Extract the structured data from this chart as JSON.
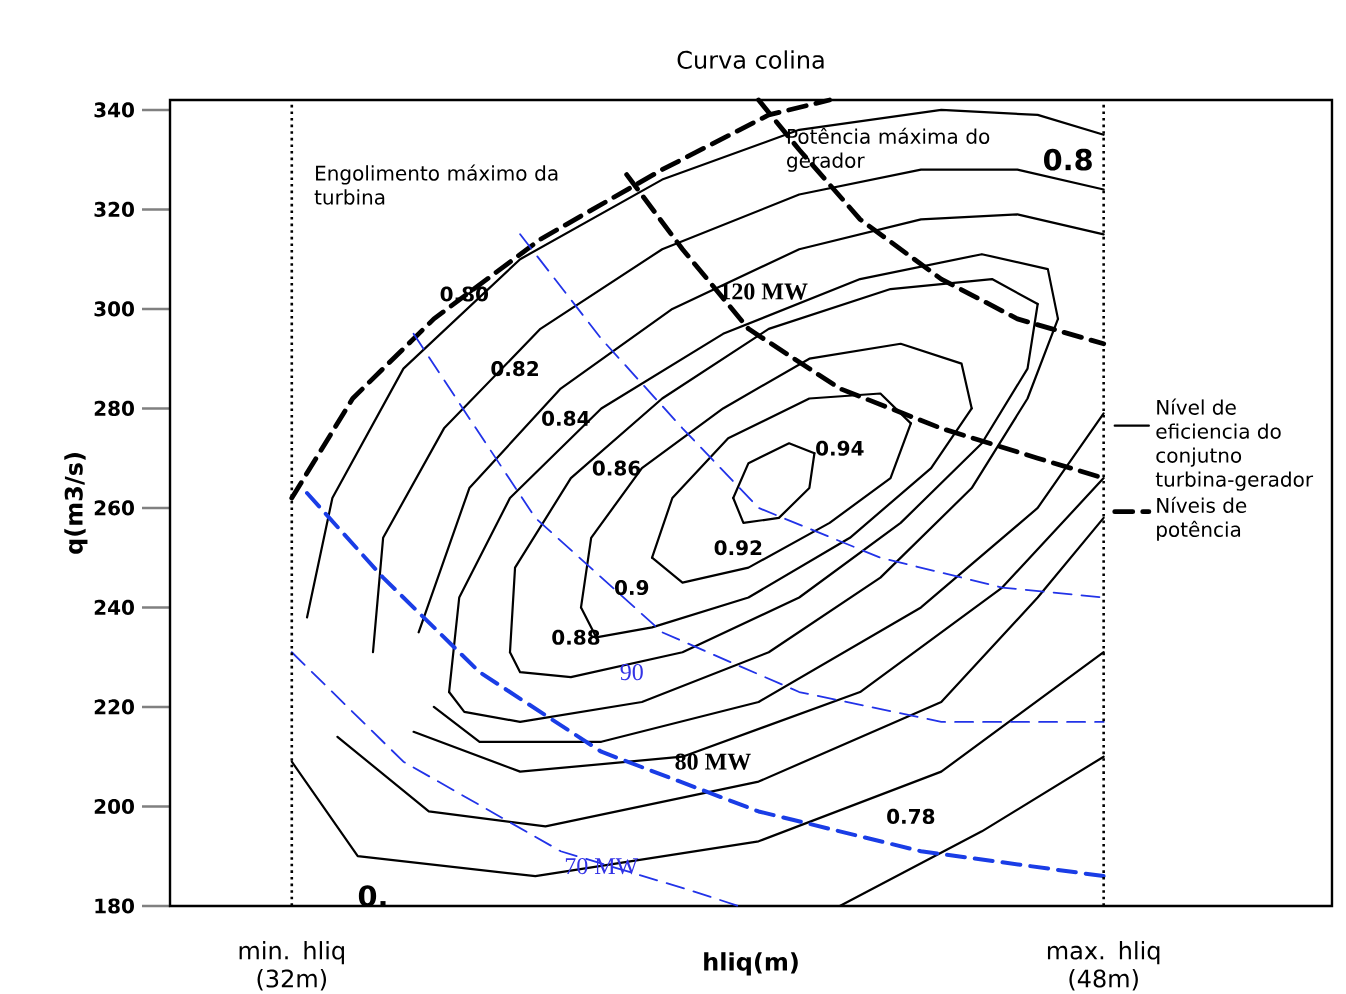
{
  "chart_data": {
    "type": "line",
    "title": "Curva colina",
    "xlabel": "hliq(m)",
    "ylabel": "q(m3/s)",
    "xlim": [
      29.6,
      52.5
    ],
    "ylim": [
      180,
      342
    ],
    "xticks": [
      {
        "value": 32,
        "label": "min. hliq (32m)"
      },
      {
        "value": 48,
        "label": "max. hliq (48m)"
      }
    ],
    "yticks": [
      180,
      200,
      220,
      240,
      260,
      280,
      300,
      320,
      340
    ],
    "grid": false,
    "legend": "right",
    "marker": "none",
    "ref_lines": [
      {
        "axis": "x",
        "value": 32,
        "line_style": "dotted"
      },
      {
        "axis": "x",
        "value": 48,
        "line_style": "dotted"
      }
    ],
    "series": [
      {
        "name": "Nível de eficiencia do conjutno turbina-gerador",
        "color": "#000000",
        "line_style": "solid",
        "x": [
          40.7,
          41.0,
          41.8,
          42.3
        ],
        "values": [
          262,
          269,
          273,
          271
        ]
      },
      {
        "color": "#000000",
        "line_style": "solid",
        "x": [
          40.7,
          40.9,
          41.6,
          42.2,
          42.3
        ],
        "values": [
          262,
          257,
          258,
          264,
          271
        ]
      },
      {
        "color": "#000000",
        "line_style": "solid",
        "x": [
          39.1,
          39.5,
          40.6,
          42.2,
          43.6,
          44.2
        ],
        "values": [
          250,
          262,
          274,
          282,
          283,
          277
        ]
      },
      {
        "color": "#000000",
        "line_style": "solid",
        "x": [
          39.1,
          39.7,
          41.0,
          42.6,
          43.8,
          44.2
        ],
        "values": [
          250,
          245,
          248,
          257,
          266,
          277
        ]
      },
      {
        "color": "#000000",
        "line_style": "solid",
        "x": [
          37.7,
          37.9,
          38.9,
          40.5,
          42.2,
          44.0,
          45.2,
          45.4
        ],
        "values": [
          240,
          254,
          268,
          280,
          290,
          293,
          289,
          280
        ]
      },
      {
        "color": "#000000",
        "line_style": "solid",
        "x": [
          37.7,
          38.0,
          39.1,
          41.0,
          43.0,
          44.6,
          45.4
        ],
        "values": [
          240,
          234,
          236,
          242,
          254,
          268,
          280
        ]
      },
      {
        "color": "#000000",
        "line_style": "solid",
        "x": [
          36.3,
          36.4,
          37.5,
          39.3,
          41.4,
          43.8,
          45.8,
          46.7
        ],
        "values": [
          231,
          248,
          266,
          282,
          296,
          304,
          306,
          301
        ]
      },
      {
        "color": "#000000",
        "line_style": "solid",
        "x": [
          36.3,
          36.5,
          37.5,
          39.7,
          42.0,
          44.0,
          45.6,
          46.5,
          46.7
        ],
        "values": [
          231,
          227,
          226,
          231,
          242,
          257,
          273,
          288,
          301
        ]
      },
      {
        "color": "#000000",
        "line_style": "solid",
        "x": [
          35.1,
          35.3,
          36.3,
          38.1,
          40.5,
          43.2,
          45.6,
          46.9,
          47.1
        ],
        "values": [
          223,
          242,
          262,
          280,
          295,
          306,
          311,
          308,
          298
        ]
      },
      {
        "color": "#000000",
        "line_style": "solid",
        "x": [
          35.1,
          35.4,
          36.5,
          38.9,
          41.4,
          43.6,
          45.4,
          46.5,
          47.1
        ],
        "values": [
          223,
          219,
          217,
          221,
          231,
          246,
          264,
          282,
          298
        ]
      },
      {
        "color": "#000000",
        "line_style": "solid",
        "x": [
          34.5,
          35.5,
          37.3,
          39.5,
          42.0,
          44.4,
          46.3,
          48.0
        ],
        "values": [
          235,
          264,
          284,
          300,
          312,
          318,
          319,
          315
        ]
      },
      {
        "color": "#000000",
        "line_style": "solid",
        "x": [
          34.8,
          35.7,
          38.1,
          41.2,
          44.4,
          46.7,
          48.0
        ],
        "values": [
          220,
          213,
          213,
          221,
          240,
          260,
          279
        ]
      },
      {
        "color": "#000000",
        "line_style": "solid",
        "x": [
          33.6,
          33.8,
          35.0,
          36.9,
          39.3,
          42.0,
          44.4,
          46.3,
          48.0
        ],
        "values": [
          231,
          254,
          276,
          296,
          312,
          323,
          328,
          328,
          324
        ]
      },
      {
        "color": "#000000",
        "line_style": "solid",
        "x": [
          34.4,
          36.5,
          39.7,
          43.2,
          46.0,
          48.0
        ],
        "values": [
          215,
          207,
          210,
          223,
          244,
          266
        ]
      },
      {
        "color": "#000000",
        "line_style": "solid",
        "x": [
          32.3,
          32.8,
          34.2,
          36.5,
          39.3,
          42.0,
          44.8,
          46.7,
          48.0
        ],
        "values": [
          238,
          262,
          288,
          310,
          326,
          336,
          340,
          339,
          335
        ]
      },
      {
        "color": "#000000",
        "line_style": "solid",
        "x": [
          32.9,
          34.7,
          37.0,
          41.2,
          44.8,
          46.7,
          48.0
        ],
        "values": [
          214,
          199,
          196,
          205,
          221,
          242,
          258
        ]
      },
      {
        "color": "#000000",
        "line_style": "solid",
        "x": [
          32.0,
          33.3,
          36.8,
          41.2,
          44.8,
          48.0
        ],
        "values": [
          209,
          190,
          186,
          193,
          207,
          231
        ]
      },
      {
        "color": "#000000",
        "line_style": "solid",
        "x": [
          42.8,
          45.6,
          48.0
        ],
        "values": [
          180,
          195,
          210
        ]
      },
      {
        "name": "Níveis de potência",
        "color": "#000000",
        "line_style": "dashed",
        "x": [
          38.6,
          39.7,
          41.0,
          42.8,
          44.8,
          46.7,
          48.0
        ],
        "values": [
          327,
          312,
          296,
          284,
          276,
          270,
          266
        ]
      },
      {
        "color": "#000000",
        "line_style": "dashed",
        "x": [
          32.0,
          33.2,
          34.8,
          36.9,
          39.3,
          41.4,
          42.6
        ],
        "values": [
          262,
          282,
          298,
          314,
          328,
          339,
          342
        ]
      },
      {
        "color": "#000000",
        "line_style": "dashed",
        "x": [
          41.2,
          42.0,
          43.2,
          44.8,
          46.3,
          48.0
        ],
        "values": [
          342,
          332,
          318,
          306,
          298,
          293
        ]
      },
      {
        "color": "#2233e8",
        "line_style": "dashed",
        "x": [
          36.5,
          38.1,
          39.7,
          41.2,
          43.6,
          46.0,
          48.0
        ],
        "values": [
          315,
          294,
          276,
          260,
          250,
          244,
          242
        ]
      },
      {
        "color": "#2233e8",
        "line_style": "dashed",
        "x": [
          34.4,
          35.5,
          36.8,
          39.3,
          42.0,
          44.8,
          48.0
        ],
        "values": [
          295,
          278,
          258,
          235,
          223,
          217,
          217
        ]
      },
      {
        "color": "#1a3de6",
        "line_style": "dashed",
        "x": [
          32.3,
          33.8,
          35.7,
          38.1,
          41.2,
          44.4,
          48.0
        ],
        "values": [
          263,
          246,
          227,
          211,
          199,
          191,
          186
        ]
      },
      {
        "color": "#2233e8",
        "line_style": "dashed",
        "x": [
          32.0,
          34.2,
          37.3,
          39.9,
          40.8
        ],
        "values": [
          231,
          209,
          191,
          183,
          180
        ]
      }
    ],
    "annotations": [
      "Engolimento máximo da turbina",
      "Potência máxima do gerador",
      "0.80",
      "0.82",
      "0.84",
      "0.86",
      "0.88",
      "0.9",
      "0.92",
      "0.94",
      "0.78",
      "0.8",
      "0.",
      "120 MW",
      "80 MW",
      "90",
      "70 MW"
    ]
  }
}
